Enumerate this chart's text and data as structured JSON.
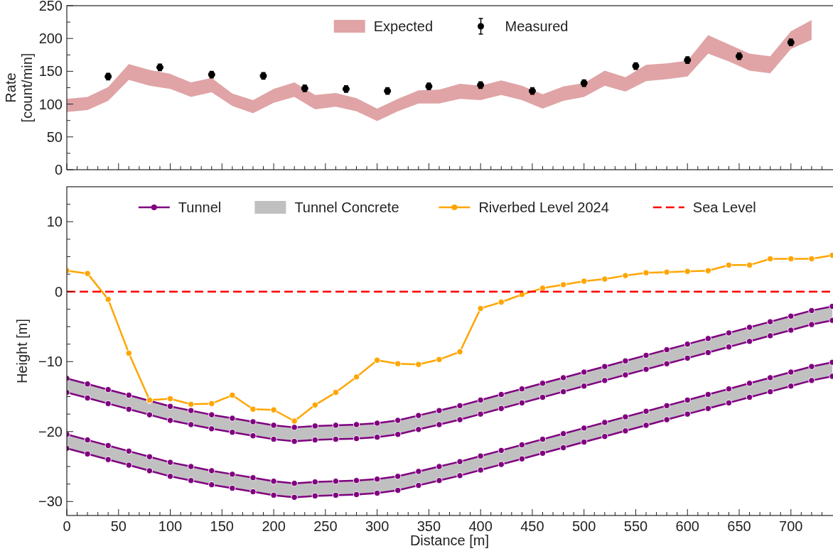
{
  "chart_data": [
    {
      "type": "scatter",
      "ylabel": "Rate\n[count/min]",
      "xlim": [
        0,
        740
      ],
      "ylim": [
        0,
        250
      ],
      "xticks": [
        0,
        {
          "value": 10,
          "label": null
        },
        {
          "value": 20,
          "label": null
        },
        {
          "value": 30,
          "label": null
        },
        {
          "value": 40,
          "label": null
        },
        50,
        {
          "value": 60,
          "label": null
        },
        {
          "value": 70,
          "label": null
        },
        {
          "value": 80,
          "label": null
        },
        {
          "value": 90,
          "label": null
        },
        100,
        {
          "value": 110,
          "label": null
        },
        {
          "value": 120,
          "label": null
        },
        {
          "value": 130,
          "label": null
        },
        {
          "value": 140,
          "label": null
        },
        150,
        {
          "value": 160,
          "label": null
        },
        {
          "value": 170,
          "label": null
        },
        {
          "value": 180,
          "label": null
        },
        {
          "value": 190,
          "label": null
        },
        200,
        {
          "value": 210,
          "label": null
        },
        {
          "value": 220,
          "label": null
        },
        {
          "value": 230,
          "label": null
        },
        {
          "value": 240,
          "label": null
        },
        250,
        {
          "value": 260,
          "label": null
        },
        {
          "value": 270,
          "label": null
        },
        {
          "value": 280,
          "label": null
        },
        {
          "value": 290,
          "label": null
        },
        300,
        {
          "value": 310,
          "label": null
        },
        {
          "value": 320,
          "label": null
        },
        {
          "value": 330,
          "label": null
        },
        {
          "value": 340,
          "label": null
        },
        350,
        {
          "value": 360,
          "label": null
        },
        {
          "value": 370,
          "label": null
        },
        {
          "value": 380,
          "label": null
        },
        {
          "value": 390,
          "label": null
        },
        400,
        {
          "value": 410,
          "label": null
        },
        {
          "value": 420,
          "label": null
        },
        {
          "value": 430,
          "label": null
        },
        {
          "value": 440,
          "label": null
        },
        450,
        {
          "value": 460,
          "label": null
        },
        {
          "value": 470,
          "label": null
        },
        {
          "value": 480,
          "label": null
        },
        {
          "value": 490,
          "label": null
        },
        500,
        {
          "value": 510,
          "label": null
        },
        {
          "value": 520,
          "label": null
        },
        {
          "value": 530,
          "label": null
        },
        {
          "value": 540,
          "label": null
        },
        550,
        {
          "value": 560,
          "label": null
        },
        {
          "value": 570,
          "label": null
        },
        {
          "value": 580,
          "label": null
        },
        {
          "value": 590,
          "label": null
        },
        600,
        {
          "value": 610,
          "label": null
        },
        {
          "value": 620,
          "label": null
        },
        {
          "value": 630,
          "label": null
        },
        {
          "value": 640,
          "label": null
        },
        650,
        {
          "value": 660,
          "label": null
        },
        {
          "value": 670,
          "label": null
        },
        {
          "value": 680,
          "label": null
        },
        {
          "value": 690,
          "label": null
        },
        700,
        {
          "value": 710,
          "label": null
        },
        {
          "value": 720,
          "label": null
        },
        {
          "value": 730,
          "label": null
        }
      ],
      "yticks": [
        0,
        {
          "value": 25,
          "label": null
        },
        50,
        {
          "value": 75,
          "label": null
        },
        100,
        {
          "value": 125,
          "label": null
        },
        150,
        {
          "value": 175,
          "label": null
        },
        200,
        {
          "value": 225,
          "label": null
        },
        250
      ],
      "tick_labels": "y",
      "legend": "top",
      "series": [
        {
          "name": "Expected",
          "color": "#e0a4a6",
          "values": [
            null,
            null,
            null,
            null,
            null,
            null,
            null,
            null,
            null,
            null,
            null,
            null,
            null,
            null,
            null,
            null,
            null,
            null,
            null,
            null,
            null,
            null,
            null,
            null,
            null,
            null,
            null,
            null,
            null,
            null,
            null,
            null,
            null,
            null,
            null,
            null,
            null
          ],
          "x": [
            0,
            20,
            40,
            60,
            80,
            100,
            120,
            140,
            160,
            180,
            200,
            220,
            240,
            260,
            280,
            300,
            320,
            340,
            360,
            380,
            400,
            420,
            440,
            460,
            480,
            500,
            520,
            540,
            560,
            580,
            600,
            620,
            640,
            660,
            680,
            700,
            720
          ],
          "upper": [
            108,
            111,
            126,
            161,
            152,
            146,
            133,
            140,
            116,
            106,
            123,
            133,
            114,
            117,
            109,
            93,
            108,
            121,
            122,
            131,
            128,
            136,
            128,
            115,
            127,
            132,
            151,
            141,
            160,
            162,
            166,
            205,
            191,
            177,
            173,
            211,
            228
          ],
          "lower": [
            88,
            91,
            105,
            137,
            128,
            123,
            111,
            118,
            97,
            86,
            102,
            111,
            92,
            96,
            89,
            74,
            89,
            101,
            101,
            108,
            106,
            114,
            106,
            93,
            105,
            111,
            128,
            119,
            135,
            138,
            142,
            177,
            165,
            151,
            147,
            184,
            198
          ]
        },
        {
          "name": "Measured",
          "color": "#000000",
          "marker": "circle",
          "x": [
            40,
            90,
            140,
            190,
            230,
            270,
            310,
            350,
            400,
            450,
            500,
            550,
            600,
            650,
            700
          ],
          "values": [
            142,
            156,
            145,
            143,
            124,
            123,
            120,
            127,
            129,
            120,
            132,
            158,
            167,
            173,
            194
          ],
          "errors": [
            5,
            5,
            5,
            5,
            5,
            5,
            5,
            5,
            5,
            5,
            5,
            5,
            5,
            5,
            5
          ]
        }
      ]
    },
    {
      "type": "line",
      "xlabel": "Distance [m]",
      "ylabel": "Height [m]",
      "xlim": [
        0,
        740
      ],
      "ylim": [
        -32,
        15
      ],
      "xticks": [
        0,
        {
          "value": 10,
          "label": null
        },
        {
          "value": 20,
          "label": null
        },
        {
          "value": 30,
          "label": null
        },
        {
          "value": 40,
          "label": null
        },
        50,
        {
          "value": 60,
          "label": null
        },
        {
          "value": 70,
          "label": null
        },
        {
          "value": 80,
          "label": null
        },
        {
          "value": 90,
          "label": null
        },
        100,
        {
          "value": 110,
          "label": null
        },
        {
          "value": 120,
          "label": null
        },
        {
          "value": 130,
          "label": null
        },
        {
          "value": 140,
          "label": null
        },
        150,
        {
          "value": 160,
          "label": null
        },
        {
          "value": 170,
          "label": null
        },
        {
          "value": 180,
          "label": null
        },
        {
          "value": 190,
          "label": null
        },
        200,
        {
          "value": 210,
          "label": null
        },
        {
          "value": 220,
          "label": null
        },
        {
          "value": 230,
          "label": null
        },
        {
          "value": 240,
          "label": null
        },
        250,
        {
          "value": 260,
          "label": null
        },
        {
          "value": 270,
          "label": null
        },
        {
          "value": 280,
          "label": null
        },
        {
          "value": 290,
          "label": null
        },
        300,
        {
          "value": 310,
          "label": null
        },
        {
          "value": 320,
          "label": null
        },
        {
          "value": 330,
          "label": null
        },
        {
          "value": 340,
          "label": null
        },
        350,
        {
          "value": 360,
          "label": null
        },
        {
          "value": 370,
          "label": null
        },
        {
          "value": 380,
          "label": null
        },
        {
          "value": 390,
          "label": null
        },
        400,
        {
          "value": 410,
          "label": null
        },
        {
          "value": 420,
          "label": null
        },
        {
          "value": 430,
          "label": null
        },
        {
          "value": 440,
          "label": null
        },
        450,
        {
          "value": 460,
          "label": null
        },
        {
          "value": 470,
          "label": null
        },
        {
          "value": 480,
          "label": null
        },
        {
          "value": 490,
          "label": null
        },
        500,
        {
          "value": 510,
          "label": null
        },
        {
          "value": 520,
          "label": null
        },
        {
          "value": 530,
          "label": null
        },
        {
          "value": 540,
          "label": null
        },
        550,
        {
          "value": 560,
          "label": null
        },
        {
          "value": 570,
          "label": null
        },
        {
          "value": 580,
          "label": null
        },
        {
          "value": 590,
          "label": null
        },
        600,
        {
          "value": 610,
          "label": null
        },
        {
          "value": 620,
          "label": null
        },
        {
          "value": 630,
          "label": null
        },
        {
          "value": 640,
          "label": null
        },
        650,
        {
          "value": 660,
          "label": null
        },
        {
          "value": 670,
          "label": null
        },
        {
          "value": 680,
          "label": null
        },
        {
          "value": 690,
          "label": null
        },
        700,
        {
          "value": 710,
          "label": null
        },
        {
          "value": 720,
          "label": null
        },
        {
          "value": 730,
          "label": null
        }
      ],
      "yticks": [
        -30,
        {
          "value": -27.5,
          "label": null
        },
        {
          "value": -25,
          "label": null
        },
        {
          "value": -22.5,
          "label": null
        },
        -20,
        {
          "value": -17.5,
          "label": null
        },
        {
          "value": -15,
          "label": null
        },
        {
          "value": -12.5,
          "label": null
        },
        -10,
        {
          "value": -7.5,
          "label": null
        },
        {
          "value": -5,
          "label": null
        },
        {
          "value": -2.5,
          "label": null
        },
        0,
        {
          "value": 2.5,
          "label": null
        },
        {
          "value": 5,
          "label": null
        },
        {
          "value": 7.5,
          "label": null
        },
        10,
        {
          "value": 12.5,
          "label": null
        }
      ],
      "legend": "top",
      "x": [
        0,
        20,
        40,
        60,
        80,
        100,
        120,
        140,
        160,
        180,
        200,
        220,
        240,
        260,
        280,
        300,
        320,
        340,
        360,
        380,
        400,
        420,
        440,
        460,
        480,
        500,
        520,
        540,
        560,
        580,
        600,
        620,
        640,
        660,
        680,
        700,
        720,
        740
      ],
      "series": [
        {
          "name": "Tunnel",
          "color": "#800080",
          "marker": "circle",
          "values": [
            -12.4,
            -13.2,
            -14,
            -14.8,
            -15.6,
            -16.4,
            -17,
            -17.6,
            -18.1,
            -18.6,
            -19.1,
            -19.4,
            -19.2,
            -19.1,
            -19,
            -18.8,
            -18.4,
            -17.7,
            -17,
            -16.3,
            -15.5,
            -14.7,
            -13.9,
            -13.1,
            -12.3,
            -11.5,
            -10.7,
            -9.9,
            -9.1,
            -8.3,
            -7.5,
            -6.7,
            -5.9,
            -5.1,
            -4.3,
            -3.5,
            -2.7,
            -2.1
          ]
        },
        {
          "name": "Tunnel Concrete",
          "color": "#c0c0c0",
          "values": [
            null,
            null,
            null,
            null,
            null,
            null,
            null,
            null,
            null,
            null,
            null,
            null,
            null,
            null,
            null,
            null,
            null,
            null,
            null,
            null,
            null,
            null,
            null,
            null,
            null,
            null,
            null,
            null,
            null,
            null,
            null,
            null,
            null,
            null,
            null,
            null,
            null,
            null
          ],
          "upper": [
            -12.4,
            -13.2,
            -14,
            -14.8,
            -15.6,
            -16.4,
            -17,
            -17.6,
            -18.1,
            -18.6,
            -19.1,
            -19.4,
            -19.2,
            -19.1,
            -19,
            -18.8,
            -18.4,
            -17.7,
            -17,
            -16.3,
            -15.5,
            -14.7,
            -13.9,
            -13.1,
            -12.3,
            -11.5,
            -10.7,
            -9.9,
            -9.1,
            -8.3,
            -7.5,
            -6.7,
            -5.9,
            -5.1,
            -4.3,
            -3.5,
            -2.7,
            -2.1
          ],
          "lower": [
            -14.4,
            -15.2,
            -16,
            -16.8,
            -17.6,
            -18.4,
            -19,
            -19.6,
            -20.1,
            -20.6,
            -21.1,
            -21.4,
            -21.2,
            -21.1,
            -21,
            -20.8,
            -20.4,
            -19.7,
            -19,
            -18.3,
            -17.5,
            -16.7,
            -15.9,
            -15.1,
            -14.3,
            -13.5,
            -12.7,
            -11.9,
            -11.1,
            -10.3,
            -9.5,
            -8.7,
            -7.9,
            -7.1,
            -6.3,
            -5.5,
            -4.7,
            -4.1
          ]
        },
        {
          "color": "#c0c0c0",
          "values": [
            null,
            null,
            null,
            null,
            null,
            null,
            null,
            null,
            null,
            null,
            null,
            null,
            null,
            null,
            null,
            null,
            null,
            null,
            null,
            null,
            null,
            null,
            null,
            null,
            null,
            null,
            null,
            null,
            null,
            null,
            null,
            null,
            null,
            null,
            null,
            null,
            null,
            null
          ],
          "upper": [
            -20.4,
            -21.2,
            -22,
            -22.8,
            -23.6,
            -24.4,
            -25,
            -25.6,
            -26.1,
            -26.6,
            -27.1,
            -27.4,
            -27.2,
            -27.1,
            -27,
            -26.8,
            -26.4,
            -25.7,
            -25,
            -24.3,
            -23.5,
            -22.7,
            -21.9,
            -21.1,
            -20.3,
            -19.5,
            -18.7,
            -17.9,
            -17.1,
            -16.3,
            -15.5,
            -14.7,
            -13.9,
            -13.1,
            -12.3,
            -11.5,
            -10.7,
            -10.1
          ],
          "lower": [
            -22.4,
            -23.2,
            -24,
            -24.8,
            -25.6,
            -26.4,
            -27,
            -27.6,
            -28.1,
            -28.6,
            -29.1,
            -29.4,
            -29.2,
            -29.1,
            -29,
            -28.8,
            -28.4,
            -27.7,
            -27,
            -26.3,
            -25.5,
            -24.7,
            -23.9,
            -23.1,
            -22.3,
            -21.5,
            -20.7,
            -19.9,
            -19.1,
            -18.3,
            -17.5,
            -16.7,
            -15.9,
            -15.1,
            -14.3,
            -13.5,
            -12.7,
            -12.1
          ]
        },
        {
          "color": "#800080",
          "marker": "circle",
          "values": [
            -14.4,
            -15.2,
            -16,
            -16.8,
            -17.6,
            -18.4,
            -19,
            -19.6,
            -20.1,
            -20.6,
            -21.1,
            -21.4,
            -21.2,
            -21.1,
            -21,
            -20.8,
            -20.4,
            -19.7,
            -19,
            -18.3,
            -17.5,
            -16.7,
            -15.9,
            -15.1,
            -14.3,
            -13.5,
            -12.7,
            -11.9,
            -11.1,
            -10.3,
            -9.5,
            -8.7,
            -7.9,
            -7.1,
            -6.3,
            -5.5,
            -4.7,
            -4.1
          ]
        },
        {
          "color": "#800080",
          "marker": "circle",
          "values": [
            -20.4,
            -21.2,
            -22,
            -22.8,
            -23.6,
            -24.4,
            -25,
            -25.6,
            -26.1,
            -26.6,
            -27.1,
            -27.4,
            -27.2,
            -27.1,
            -27,
            -26.8,
            -26.4,
            -25.7,
            -25,
            -24.3,
            -23.5,
            -22.7,
            -21.9,
            -21.1,
            -20.3,
            -19.5,
            -18.7,
            -17.9,
            -17.1,
            -16.3,
            -15.5,
            -14.7,
            -13.9,
            -13.1,
            -12.3,
            -11.5,
            -10.7,
            -10.1
          ]
        },
        {
          "color": "#800080",
          "marker": "circle",
          "values": [
            -22.4,
            -23.2,
            -24,
            -24.8,
            -25.6,
            -26.4,
            -27,
            -27.6,
            -28.1,
            -28.6,
            -29.1,
            -29.4,
            -29.2,
            -29.1,
            -29,
            -28.8,
            -28.4,
            -27.7,
            -27,
            -26.3,
            -25.5,
            -24.7,
            -23.9,
            -23.1,
            -22.3,
            -21.5,
            -20.7,
            -19.9,
            -19.1,
            -18.3,
            -17.5,
            -16.7,
            -15.9,
            -15.1,
            -14.3,
            -13.5,
            -12.7,
            -12.1
          ]
        },
        {
          "name": "Riverbed Level 2024",
          "color": "#ffa500",
          "marker": "circle",
          "values": [
            3.0,
            2.6,
            -1.1,
            -8.8,
            -15.5,
            -15.3,
            -16.1,
            -16.0,
            -14.8,
            -16.8,
            -16.9,
            -18.5,
            -16.2,
            -14.4,
            -12.2,
            -9.8,
            -10.3,
            -10.4,
            -9.7,
            -8.6,
            -2.4,
            -1.5,
            -0.4,
            0.5,
            1.0,
            1.5,
            1.8,
            2.3,
            2.7,
            2.8,
            2.9,
            3.0,
            3.8,
            3.8,
            4.7,
            4.7,
            4.7,
            5.2
          ]
        }
      ],
      "ref_lines": [
        {
          "axis": "y",
          "value": 0,
          "label": "Sea Level",
          "color": "#ff0000",
          "line_style": "dashed"
        }
      ]
    }
  ]
}
